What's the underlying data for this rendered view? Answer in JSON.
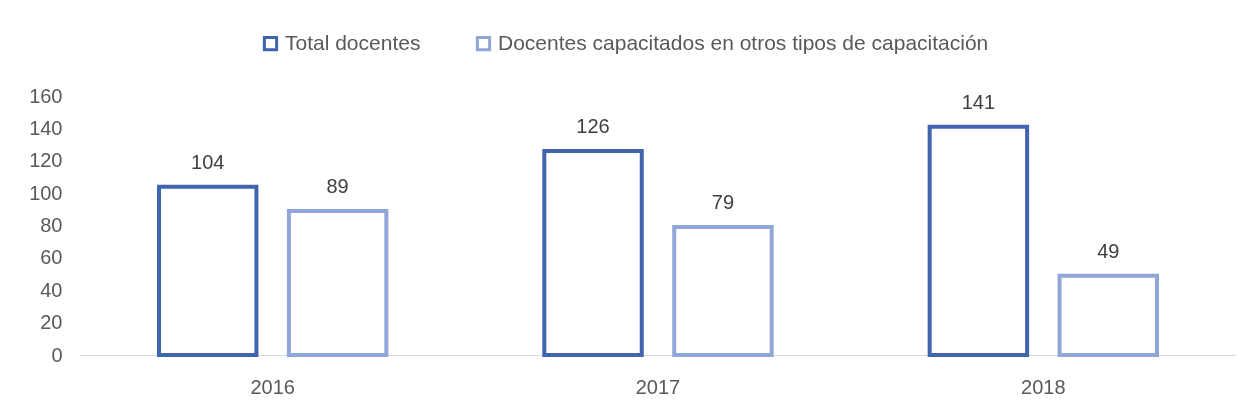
{
  "chart_data": {
    "type": "bar",
    "categories": [
      "2016",
      "2017",
      "2018"
    ],
    "series": [
      {
        "name": "Total docentes",
        "color": "#4064ad",
        "values": [
          104,
          126,
          141
        ]
      },
      {
        "name": "Docentes capacitados en otros tipos de capacitación",
        "color": "#8fa6d7",
        "values": [
          89,
          79,
          49
        ]
      }
    ],
    "ylim": [
      0,
      160
    ],
    "yticks": [
      0,
      20,
      40,
      60,
      80,
      100,
      120,
      140,
      160
    ],
    "legend": "top",
    "data_labels": true
  }
}
